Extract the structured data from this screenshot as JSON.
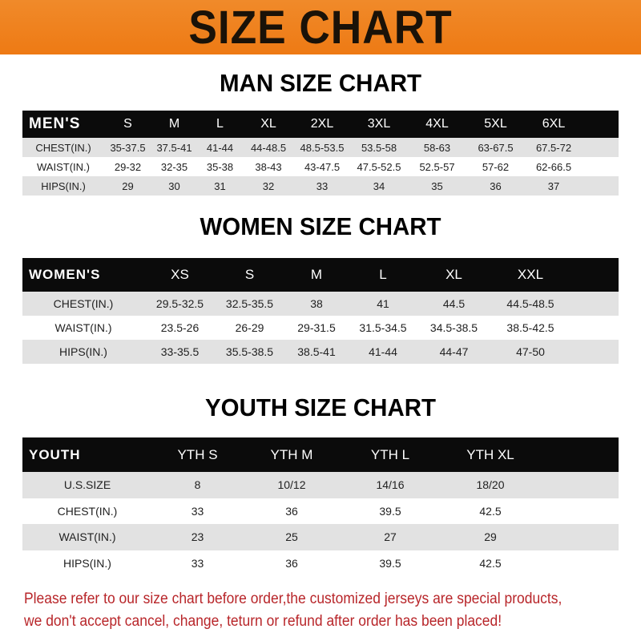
{
  "banner_title": "SIZE CHART",
  "men": {
    "title": "MAN SIZE CHART",
    "header": [
      "MEN'S",
      "S",
      "M",
      "L",
      "XL",
      "2XL",
      "3XL",
      "4XL",
      "5XL",
      "6XL"
    ],
    "rows": [
      [
        "CHEST(IN.)",
        "35-37.5",
        "37.5-41",
        "41-44",
        "44-48.5",
        "48.5-53.5",
        "53.5-58",
        "58-63",
        "63-67.5",
        "67.5-72"
      ],
      [
        "WAIST(IN.)",
        "29-32",
        "32-35",
        "35-38",
        "38-43",
        "43-47.5",
        "47.5-52.5",
        "52.5-57",
        "57-62",
        "62-66.5"
      ],
      [
        "HIPS(IN.)",
        "29",
        "30",
        "31",
        "32",
        "33",
        "34",
        "35",
        "36",
        "37"
      ]
    ]
  },
  "women": {
    "title": "WOMEN SIZE CHART",
    "header": [
      "WOMEN'S",
      "XS",
      "S",
      "M",
      "L",
      "XL",
      "XXL"
    ],
    "rows": [
      [
        "CHEST(IN.)",
        "29.5-32.5",
        "32.5-35.5",
        "38",
        "41",
        "44.5",
        "44.5-48.5"
      ],
      [
        "WAIST(IN.)",
        "23.5-26",
        "26-29",
        "29-31.5",
        "31.5-34.5",
        "34.5-38.5",
        "38.5-42.5"
      ],
      [
        "HIPS(IN.)",
        "33-35.5",
        "35.5-38.5",
        "38.5-41",
        "41-44",
        "44-47",
        "47-50"
      ]
    ]
  },
  "youth": {
    "title": "YOUTH SIZE CHART",
    "header": [
      "YOUTH",
      "YTH S",
      "YTH M",
      "YTH L",
      "YTH XL"
    ],
    "rows": [
      [
        "U.S.SIZE",
        "8",
        "10/12",
        "14/16",
        "18/20"
      ],
      [
        "CHEST(IN.)",
        "33",
        "36",
        "39.5",
        "42.5"
      ],
      [
        "WAIST(IN.)",
        "23",
        "25",
        "27",
        "29"
      ],
      [
        "HIPS(IN.)",
        "33",
        "36",
        "39.5",
        "42.5"
      ]
    ]
  },
  "note": {
    "line1": "Please refer to our size chart before order,the customized jerseys are special products,",
    "line2": "we don't accept cancel, change, teturn or refund after order has been placed!"
  },
  "colors": {
    "banner": "#ee7a14",
    "header_bg": "#0b0b0b",
    "stripe": "#e2e2e2",
    "note": "#b8262a"
  }
}
